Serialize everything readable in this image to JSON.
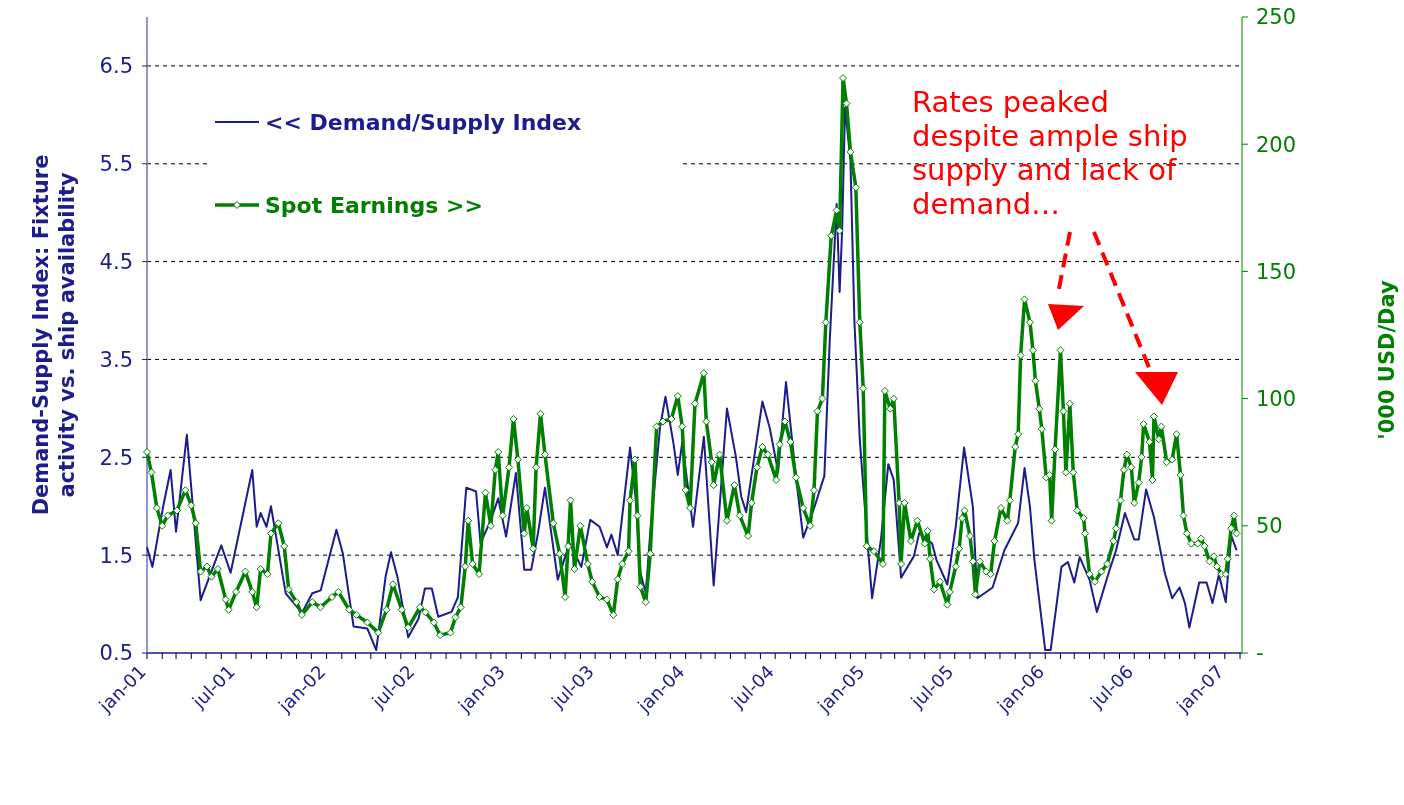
{
  "chart_data": {
    "type": "line",
    "ylabel": "Demand-Supply Index: Fixture\nactivity vs. ship availability",
    "y2label": "'000 USD/Day",
    "annotations": [
      "Rates peaked\ndespite ample ship\nsupply and lack of\ndemand…"
    ],
    "legend": "top left",
    "grid": "y",
    "xlim": [
      "2001-01-01",
      "2007-02-05"
    ],
    "ylim": [
      0.5,
      7.0
    ],
    "yticks": [
      0.5,
      1.5,
      2.5,
      3.5,
      4.5,
      5.5,
      6.5
    ],
    "y2lim": [
      0,
      250
    ],
    "y2ticks": [
      {
        "value": 0,
        "label": "-"
      },
      50,
      100,
      150,
      200,
      250
    ],
    "xticks": [
      {
        "value": "2001-01",
        "label": "jan-01"
      },
      {
        "value": "2001-02",
        "label": null
      },
      {
        "value": "2001-03",
        "label": null
      },
      {
        "value": "2001-04",
        "label": null
      },
      {
        "value": "2001-05",
        "label": null
      },
      {
        "value": "2001-06",
        "label": null
      },
      {
        "value": "2001-07",
        "label": "jul-01"
      },
      {
        "value": "2001-08",
        "label": null
      },
      {
        "value": "2001-09",
        "label": null
      },
      {
        "value": "2001-10",
        "label": null
      },
      {
        "value": "2001-11",
        "label": null
      },
      {
        "value": "2001-12",
        "label": null
      },
      {
        "value": "2002-01",
        "label": "jan-02"
      },
      {
        "value": "2002-02",
        "label": null
      },
      {
        "value": "2002-03",
        "label": null
      },
      {
        "value": "2002-04",
        "label": null
      },
      {
        "value": "2002-05",
        "label": null
      },
      {
        "value": "2002-06",
        "label": null
      },
      {
        "value": "2002-07",
        "label": "jul-02"
      },
      {
        "value": "2002-08",
        "label": null
      },
      {
        "value": "2002-09",
        "label": null
      },
      {
        "value": "2002-10",
        "label": null
      },
      {
        "value": "2002-11",
        "label": null
      },
      {
        "value": "2002-12",
        "label": null
      },
      {
        "value": "2003-01",
        "label": "jan-03"
      },
      {
        "value": "2003-02",
        "label": null
      },
      {
        "value": "2003-03",
        "label": null
      },
      {
        "value": "2003-04",
        "label": null
      },
      {
        "value": "2003-05",
        "label": null
      },
      {
        "value": "2003-06",
        "label": null
      },
      {
        "value": "2003-07",
        "label": "jul-03"
      },
      {
        "value": "2003-08",
        "label": null
      },
      {
        "value": "2003-09",
        "label": null
      },
      {
        "value": "2003-10",
        "label": null
      },
      {
        "value": "2003-11",
        "label": null
      },
      {
        "value": "2003-12",
        "label": null
      },
      {
        "value": "2004-01",
        "label": "jan-04"
      },
      {
        "value": "2004-02",
        "label": null
      },
      {
        "value": "2004-03",
        "label": null
      },
      {
        "value": "2004-04",
        "label": null
      },
      {
        "value": "2004-05",
        "label": null
      },
      {
        "value": "2004-06",
        "label": null
      },
      {
        "value": "2004-07",
        "label": "jul-04"
      },
      {
        "value": "2004-08",
        "label": null
      },
      {
        "value": "2004-09",
        "label": null
      },
      {
        "value": "2004-10",
        "label": null
      },
      {
        "value": "2004-11",
        "label": null
      },
      {
        "value": "2004-12",
        "label": null
      },
      {
        "value": "2005-01",
        "label": "jan-05"
      },
      {
        "value": "2005-02",
        "label": null
      },
      {
        "value": "2005-03",
        "label": null
      },
      {
        "value": "2005-04",
        "label": null
      },
      {
        "value": "2005-05",
        "label": null
      },
      {
        "value": "2005-06",
        "label": null
      },
      {
        "value": "2005-07",
        "label": "jul-05"
      },
      {
        "value": "2005-08",
        "label": null
      },
      {
        "value": "2005-09",
        "label": null
      },
      {
        "value": "2005-10",
        "label": null
      },
      {
        "value": "2005-11",
        "label": null
      },
      {
        "value": "2005-12",
        "label": null
      },
      {
        "value": "2006-01",
        "label": "jan-06"
      },
      {
        "value": "2006-02",
        "label": null
      },
      {
        "value": "2006-03",
        "label": null
      },
      {
        "value": "2006-04",
        "label": null
      },
      {
        "value": "2006-05",
        "label": null
      },
      {
        "value": "2006-06",
        "label": null
      },
      {
        "value": "2006-07",
        "label": "jul-06"
      },
      {
        "value": "2006-08",
        "label": null
      },
      {
        "value": "2006-09",
        "label": null
      },
      {
        "value": "2006-10",
        "label": null
      },
      {
        "value": "2006-11",
        "label": null
      },
      {
        "value": "2006-12",
        "label": null
      },
      {
        "value": "2007-01",
        "label": "jan-07"
      },
      {
        "value": "2007-02",
        "label": null
      }
    ],
    "series": [
      {
        "name": "<< Demand/Supply Index",
        "color": "#1c1c8c",
        "marker": "none",
        "x": [
          "2001-01-01",
          "2001-01-12",
          "2001-02-03",
          "2001-02-18",
          "2001-03-01",
          "2001-03-23",
          "2001-04-20",
          "2001-06-01",
          "2001-06-20",
          "2001-08-03",
          "2001-08-12",
          "2001-08-20",
          "2001-09-01",
          "2001-09-10",
          "2001-10-10",
          "2001-11-12",
          "2001-12-03",
          "2001-12-20",
          "2002-01-21",
          "2002-02-03",
          "2002-02-25",
          "2002-03-25",
          "2002-04-12",
          "2002-05-01",
          "2002-05-12",
          "2002-05-25",
          "2002-06-16",
          "2002-07-07",
          "2002-07-20",
          "2002-08-03",
          "2002-08-16",
          "2002-09-12",
          "2002-09-25",
          "2002-10-12",
          "2002-11-01",
          "2002-11-10",
          "2002-12-01",
          "2002-12-16",
          "2003-01-01",
          "2003-01-21",
          "2003-02-07",
          "2003-02-21",
          "2003-03-07",
          "2003-03-21",
          "2003-04-16",
          "2003-05-10",
          "2003-06-03",
          "2003-06-21",
          "2003-07-10",
          "2003-07-25",
          "2003-08-03",
          "2003-08-16",
          "2003-09-10",
          "2003-09-21",
          "2003-10-01",
          "2003-10-12",
          "2003-10-21",
          "2003-11-10",
          "2003-11-21",
          "2003-12-07",
          "2003-12-16",
          "2003-12-25",
          "2004-01-16",
          "2004-02-07",
          "2004-02-27",
          "2004-03-25",
          "2004-04-12",
          "2004-04-23",
          "2004-05-03",
          "2004-06-05",
          "2004-06-20",
          "2004-07-07",
          "2004-07-23",
          "2004-08-12",
          "2004-08-27",
          "2004-09-18",
          "2004-10-09",
          "2004-10-20",
          "2004-11-03",
          "2004-11-09",
          "2004-11-14",
          "2004-11-20",
          "2004-12-01",
          "2004-12-09",
          "2004-12-20",
          "2005-01-03",
          "2005-01-14",
          "2005-02-01",
          "2005-02-16",
          "2005-02-27",
          "2005-03-14",
          "2005-04-09",
          "2005-04-20",
          "2005-05-16",
          "2005-05-25",
          "2005-06-16",
          "2005-07-03",
          "2005-07-20",
          "2005-08-07",
          "2005-08-16",
          "2005-09-16",
          "2005-10-10",
          "2005-11-07",
          "2005-11-20",
          "2005-12-01",
          "2005-12-10",
          "2006-01-01",
          "2006-01-12",
          "2006-02-03",
          "2006-02-16",
          "2006-03-01",
          "2006-03-12",
          "2006-04-01",
          "2006-04-16",
          "2006-05-10",
          "2006-05-25",
          "2006-06-12",
          "2006-07-01",
          "2006-07-10",
          "2006-07-25",
          "2006-08-10",
          "2006-09-01",
          "2006-09-16",
          "2006-10-01",
          "2006-10-12",
          "2006-10-21",
          "2006-11-10",
          "2006-11-25",
          "2006-12-07",
          "2006-12-20",
          "2007-01-03",
          "2007-01-14",
          "2007-01-25"
        ],
        "values": [
          1.58,
          1.38,
          2.0,
          2.37,
          1.74,
          2.73,
          1.04,
          1.6,
          1.32,
          2.37,
          1.79,
          1.93,
          1.79,
          2.0,
          1.11,
          0.91,
          1.11,
          1.14,
          1.76,
          1.52,
          0.77,
          0.75,
          0.53,
          1.28,
          1.53,
          1.28,
          0.66,
          0.85,
          1.16,
          1.16,
          0.87,
          0.92,
          1.07,
          2.19,
          2.15,
          1.62,
          1.86,
          2.08,
          1.69,
          2.34,
          1.35,
          1.35,
          1.73,
          2.19,
          1.25,
          1.62,
          1.38,
          1.86,
          1.79,
          1.58,
          1.71,
          1.5,
          2.6,
          2.1,
          1.32,
          1.11,
          1.73,
          2.81,
          3.12,
          2.65,
          2.32,
          2.65,
          1.79,
          2.71,
          1.19,
          3.0,
          2.51,
          2.1,
          1.94,
          3.07,
          2.8,
          2.35,
          3.27,
          2.31,
          1.68,
          1.98,
          2.31,
          3.7,
          5.09,
          4.19,
          4.8,
          6.07,
          5.54,
          3.9,
          2.68,
          1.74,
          1.06,
          1.66,
          2.43,
          2.27,
          1.27,
          1.49,
          1.73,
          1.62,
          1.45,
          1.2,
          1.79,
          2.6,
          1.99,
          1.06,
          1.17,
          1.55,
          1.83,
          2.39,
          1.99,
          1.45,
          0.53,
          0.53,
          1.38,
          1.43,
          1.22,
          1.48,
          1.25,
          0.92,
          1.32,
          1.55,
          1.93,
          1.66,
          1.66,
          2.17,
          1.89,
          1.32,
          1.06,
          1.17,
          1.01,
          0.76,
          1.22,
          1.22,
          1.01,
          1.3,
          1.02,
          1.7,
          1.55
        ]
      },
      {
        "name": "Spot Earnings >>",
        "color": "#008000",
        "marker": "diamond",
        "axis": "y2",
        "x": [
          "2001-01-01",
          "2001-01-10",
          "2001-01-21",
          "2001-02-01",
          "2001-02-12",
          "2001-03-03",
          "2001-03-20",
          "2001-04-01",
          "2001-04-10",
          "2001-04-20",
          "2001-05-03",
          "2001-05-12",
          "2001-05-25",
          "2001-06-10",
          "2001-06-16",
          "2001-07-01",
          "2001-07-20",
          "2001-08-03",
          "2001-08-12",
          "2001-08-20",
          "2001-09-03",
          "2001-09-10",
          "2001-09-25",
          "2001-10-07",
          "2001-10-16",
          "2001-11-01",
          "2001-11-12",
          "2001-12-03",
          "2001-12-20",
          "2002-01-12",
          "2002-01-25",
          "2002-02-16",
          "2002-03-03",
          "2002-03-25",
          "2002-04-16",
          "2002-05-03",
          "2002-05-16",
          "2002-06-03",
          "2002-06-16",
          "2002-07-10",
          "2002-07-21",
          "2002-08-07",
          "2002-08-20",
          "2002-09-10",
          "2002-09-20",
          "2002-10-01",
          "2002-10-10",
          "2002-10-16",
          "2002-10-25",
          "2002-11-07",
          "2002-11-20",
          "2002-12-01",
          "2002-12-10",
          "2002-12-16",
          "2002-12-25",
          "2003-01-07",
          "2003-01-16",
          "2003-01-25",
          "2003-02-07",
          "2003-02-12",
          "2003-02-25",
          "2003-03-03",
          "2003-03-12",
          "2003-03-21",
          "2003-04-07",
          "2003-04-20",
          "2003-05-01",
          "2003-05-07",
          "2003-05-12",
          "2003-05-20",
          "2003-06-01",
          "2003-06-16",
          "2003-06-25",
          "2003-07-10",
          "2003-07-25",
          "2003-08-07",
          "2003-08-16",
          "2003-08-25",
          "2003-09-07",
          "2003-09-10",
          "2003-09-20",
          "2003-09-25",
          "2003-10-01",
          "2003-10-12",
          "2003-10-21",
          "2003-11-03",
          "2003-11-16",
          "2003-12-03",
          "2003-12-16",
          "2003-12-25",
          "2004-01-01",
          "2004-01-10",
          "2004-01-20",
          "2004-02-07",
          "2004-02-12",
          "2004-02-23",
          "2004-02-27",
          "2004-03-10",
          "2004-03-25",
          "2004-04-09",
          "2004-04-20",
          "2004-05-07",
          "2004-05-14",
          "2004-05-25",
          "2004-06-05",
          "2004-06-16",
          "2004-07-03",
          "2004-07-10",
          "2004-07-21",
          "2004-08-01",
          "2004-08-12",
          "2004-08-27",
          "2004-09-10",
          "2004-09-18",
          "2004-09-25",
          "2004-10-05",
          "2004-10-12",
          "2004-10-23",
          "2004-11-03",
          "2004-11-09",
          "2004-11-16",
          "2004-11-23",
          "2004-12-01",
          "2004-12-12",
          "2004-12-20",
          "2004-12-27",
          "2005-01-03",
          "2005-01-18",
          "2005-02-05",
          "2005-02-09",
          "2005-02-20",
          "2005-02-27",
          "2005-03-10",
          "2005-03-14",
          "2005-03-21",
          "2005-04-03",
          "2005-04-16",
          "2005-05-01",
          "2005-05-07",
          "2005-05-12",
          "2005-05-20",
          "2005-06-01",
          "2005-06-16",
          "2005-06-21",
          "2005-07-03",
          "2005-07-10",
          "2005-07-16",
          "2005-07-21",
          "2005-08-01",
          "2005-08-07",
          "2005-08-12",
          "2005-08-21",
          "2005-09-03",
          "2005-09-12",
          "2005-09-20",
          "2005-10-03",
          "2005-10-16",
          "2005-10-21",
          "2005-11-01",
          "2005-11-07",
          "2005-11-12",
          "2005-11-20",
          "2005-12-01",
          "2005-12-07",
          "2005-12-12",
          "2005-12-20",
          "2005-12-25",
          "2006-01-03",
          "2006-01-10",
          "2006-01-14",
          "2006-01-21",
          "2006-02-01",
          "2006-02-07",
          "2006-02-12",
          "2006-02-20",
          "2006-02-27",
          "2006-03-07",
          "2006-03-20",
          "2006-03-23",
          "2006-04-01",
          "2006-04-12",
          "2006-04-25",
          "2006-05-07",
          "2006-05-20",
          "2006-05-25",
          "2006-06-03",
          "2006-06-10",
          "2006-06-16",
          "2006-06-25",
          "2006-07-01",
          "2006-07-10",
          "2006-07-16",
          "2006-07-20",
          "2006-08-01",
          "2006-08-07",
          "2006-08-10",
          "2006-08-20",
          "2006-08-25",
          "2006-09-05",
          "2006-09-16",
          "2006-09-25",
          "2006-10-03",
          "2006-10-09",
          "2006-10-16",
          "2006-10-25",
          "2006-11-07",
          "2006-11-14",
          "2006-11-21",
          "2006-12-01",
          "2006-12-10",
          "2006-12-16",
          "2006-12-25",
          "2007-01-03",
          "2007-01-07",
          "2007-01-14",
          "2007-01-20",
          "2007-01-25"
        ],
        "values": [
          79,
          71,
          57,
          50,
          54,
          56,
          64,
          58,
          51,
          32,
          34,
          30,
          33,
          21,
          17,
          24,
          32,
          24,
          18,
          33,
          31,
          47,
          51,
          42,
          25,
          20,
          15,
          20,
          18,
          22,
          24,
          17,
          15,
          12,
          8,
          17,
          27,
          17,
          10,
          18,
          16,
          12,
          7,
          8,
          14,
          18,
          34,
          52,
          35,
          31,
          63,
          50,
          72,
          79,
          54,
          73,
          92,
          76,
          47,
          57,
          41,
          73,
          94,
          78,
          51,
          39,
          22,
          42,
          60,
          33,
          50,
          35,
          28,
          22,
          21,
          15,
          29,
          35,
          40,
          60,
          76,
          54,
          26,
          20,
          39,
          89,
          91,
          92,
          101,
          89,
          64,
          57,
          98,
          110,
          91,
          75,
          66,
          78,
          52,
          66,
          54,
          46,
          59,
          73,
          81,
          78,
          68,
          82,
          91,
          83,
          69,
          57,
          50,
          64,
          95,
          100,
          130,
          164,
          174,
          166,
          226,
          216,
          197,
          183,
          130,
          104,
          42,
          40,
          35,
          103,
          96,
          100,
          59,
          35,
          59,
          44,
          52,
          43,
          48,
          37,
          25,
          28,
          19,
          24,
          34,
          41,
          53,
          56,
          46,
          36,
          23,
          36,
          32,
          31,
          44,
          57,
          52,
          60,
          81,
          86,
          117,
          139,
          130,
          119,
          107,
          96,
          88,
          69,
          70,
          52,
          80,
          119,
          95,
          71,
          98,
          71,
          56,
          53,
          47,
          31,
          28,
          32,
          35,
          44,
          49,
          60,
          72,
          78,
          73,
          59,
          67,
          77,
          90,
          83,
          68,
          93,
          84,
          89,
          75,
          76,
          86,
          70,
          54,
          47,
          43,
          43,
          45,
          42,
          36,
          38,
          34,
          31,
          31,
          37,
          49,
          54,
          47
        ]
      }
    ]
  }
}
